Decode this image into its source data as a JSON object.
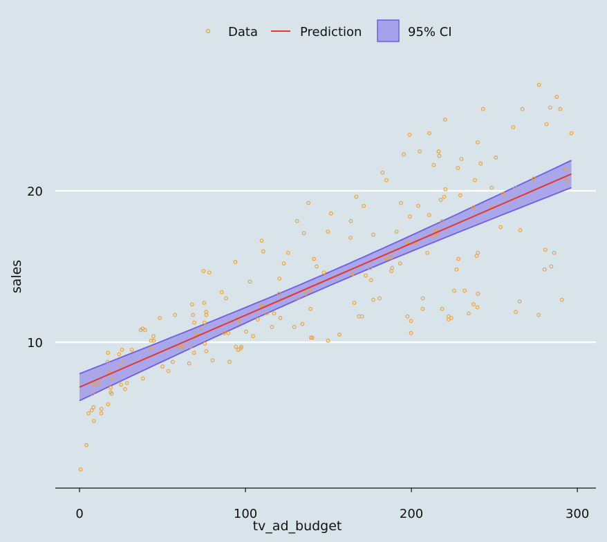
{
  "chart_data": {
    "type": "scatter",
    "title": "",
    "xlabel": "tv_ad_budget",
    "ylabel": "sales",
    "xlim": [
      -14.6,
      311.2
    ],
    "ylim": [
      0.365,
      32.6
    ],
    "xticks": [
      0,
      100,
      200,
      300
    ],
    "yticks": [
      10,
      20
    ],
    "grid": "horizontal",
    "legend": {
      "placement": "top-center",
      "entries": [
        "Data",
        "Prediction",
        "95% CI"
      ]
    },
    "colors": {
      "background": "#d9e3ea",
      "points": "#f0a030",
      "prediction": "#e8352a",
      "ci_fill": "#a6a2ea",
      "ci_edge": "#6c5ce7",
      "grid": "#ffffff"
    },
    "prediction": {
      "intercept": 7.03,
      "slope": 0.0475,
      "x_range": [
        0,
        296.4
      ]
    },
    "ci": {
      "halfwidth_at_mean": 0.45,
      "halfwidth_at_ends": 0.9,
      "x_mean": 147
    },
    "points": [
      [
        230.1,
        22.1
      ],
      [
        44.5,
        10.4
      ],
      [
        17.2,
        9.3
      ],
      [
        151.5,
        18.5
      ],
      [
        180.8,
        12.9
      ],
      [
        8.7,
        7.2
      ],
      [
        57.5,
        11.8
      ],
      [
        120.2,
        13.2
      ],
      [
        8.6,
        4.8
      ],
      [
        199.8,
        10.6
      ],
      [
        66.1,
        8.6
      ],
      [
        214.7,
        17.4
      ],
      [
        23.8,
        9.2
      ],
      [
        97.5,
        9.7
      ],
      [
        204.1,
        19
      ],
      [
        195.4,
        22.4
      ],
      [
        67.8,
        12.5
      ],
      [
        281.4,
        24.4
      ],
      [
        69.2,
        11.3
      ],
      [
        147.3,
        14.6
      ],
      [
        218.4,
        18
      ],
      [
        237.4,
        12.5
      ],
      [
        13.2,
        5.6
      ],
      [
        228.3,
        15.5
      ],
      [
        62.3,
        9.7
      ],
      [
        262.9,
        12
      ],
      [
        142.9,
        15
      ],
      [
        240.1,
        15.9
      ],
      [
        248.8,
        18.9
      ],
      [
        70.6,
        10.5
      ],
      [
        292.9,
        21.4
      ],
      [
        112.9,
        11.9
      ],
      [
        97.2,
        9.6
      ],
      [
        265.6,
        17.4
      ],
      [
        95.7,
        9.5
      ],
      [
        290.7,
        12.8
      ],
      [
        266.9,
        25.4
      ],
      [
        74.7,
        14.7
      ],
      [
        43.1,
        10.1
      ],
      [
        228,
        21.5
      ],
      [
        202.5,
        16.6
      ],
      [
        177,
        17.1
      ],
      [
        293.6,
        20.7
      ],
      [
        206.9,
        12.9
      ],
      [
        25.1,
        8.5
      ],
      [
        175.1,
        14.9
      ],
      [
        89.7,
        10.6
      ],
      [
        239.9,
        23.2
      ],
      [
        227.2,
        14.8
      ],
      [
        66.9,
        9.7
      ],
      [
        199.8,
        11.4
      ],
      [
        100.4,
        10.7
      ],
      [
        216.4,
        22.6
      ],
      [
        182.6,
        21.2
      ],
      [
        262.7,
        20.2
      ],
      [
        198.9,
        23.7
      ],
      [
        7.3,
        5.5
      ],
      [
        136.2,
        13.2
      ],
      [
        210.8,
        23.8
      ],
      [
        210.7,
        18.4
      ],
      [
        53.5,
        8.1
      ],
      [
        261.3,
        24.2
      ],
      [
        239.3,
        15.7
      ],
      [
        102.7,
        14
      ],
      [
        131.1,
        18
      ],
      [
        69,
        9.3
      ],
      [
        31.5,
        9.5
      ],
      [
        139.3,
        13.4
      ],
      [
        237.4,
        18.9
      ],
      [
        216.8,
        22.3
      ],
      [
        199.1,
        18.3
      ],
      [
        109.8,
        12.4
      ],
      [
        26.8,
        8.8
      ],
      [
        129.4,
        11
      ],
      [
        213.4,
        17
      ],
      [
        16.9,
        8.7
      ],
      [
        27.5,
        6.9
      ],
      [
        120.5,
        14.2
      ],
      [
        5.4,
        5.3
      ],
      [
        116,
        11
      ],
      [
        76.4,
        11.8
      ],
      [
        239.8,
        12.3
      ],
      [
        75.3,
        11.3
      ],
      [
        68.4,
        11.8
      ],
      [
        213.5,
        21.7
      ],
      [
        193.2,
        15.2
      ],
      [
        76.3,
        12
      ],
      [
        110.7,
        16
      ],
      [
        88.3,
        12.9
      ],
      [
        109.8,
        16.7
      ],
      [
        134.3,
        11.2
      ],
      [
        28.6,
        7.3
      ],
      [
        217.7,
        19.4
      ],
      [
        250.9,
        22.2
      ],
      [
        107.4,
        11.5
      ],
      [
        163.3,
        16.9
      ],
      [
        197.6,
        11.7
      ],
      [
        184.9,
        15.5
      ],
      [
        289.7,
        25.4
      ],
      [
        135.2,
        17.2
      ],
      [
        222.4,
        11.7
      ],
      [
        296.4,
        23.8
      ],
      [
        280.2,
        14.8
      ],
      [
        187.9,
        14.7
      ],
      [
        238.2,
        20.7
      ],
      [
        137.9,
        19.2
      ],
      [
        25,
        7.2
      ],
      [
        90.4,
        8.7
      ],
      [
        13.1,
        5.3
      ],
      [
        255.4,
        19.8
      ],
      [
        225.8,
        13.4
      ],
      [
        241.7,
        21.8
      ],
      [
        175.7,
        14.1
      ],
      [
        209.6,
        15.9
      ],
      [
        78.2,
        14.6
      ],
      [
        75.1,
        12.6
      ],
      [
        139.2,
        12.2
      ],
      [
        76.4,
        9.4
      ],
      [
        125.7,
        15.9
      ],
      [
        19.4,
        6.6
      ],
      [
        141.3,
        15.5
      ],
      [
        18.8,
        7
      ],
      [
        224,
        11.6
      ],
      [
        123.1,
        15.2
      ],
      [
        229.5,
        19.7
      ],
      [
        87.2,
        10.6
      ],
      [
        7.8,
        6.6
      ],
      [
        80.2,
        8.8
      ],
      [
        220.3,
        24.7
      ],
      [
        59.6,
        9.7
      ],
      [
        0.7,
        1.6
      ],
      [
        265.2,
        12.7
      ],
      [
        8.4,
        5.7
      ],
      [
        219.8,
        19.6
      ],
      [
        36.9,
        10.8
      ],
      [
        48.3,
        11.6
      ],
      [
        25.6,
        9.5
      ],
      [
        273.7,
        20.8
      ],
      [
        43,
        9.6
      ],
      [
        184.9,
        20.7
      ],
      [
        73.4,
        10.9
      ],
      [
        193.7,
        19.2
      ],
      [
        220.5,
        20.1
      ],
      [
        104.6,
        10.4
      ],
      [
        96.2,
        11.4
      ],
      [
        140.3,
        10.3
      ],
      [
        240.1,
        13.2
      ],
      [
        243.2,
        25.4
      ],
      [
        38,
        10.9
      ],
      [
        44.7,
        10.1
      ],
      [
        280.7,
        16.1
      ],
      [
        121,
        11.6
      ],
      [
        197.6,
        16.6
      ],
      [
        171.3,
        19
      ],
      [
        187.8,
        15.6
      ],
      [
        4.1,
        3.2
      ],
      [
        93.9,
        15.3
      ],
      [
        149.8,
        10.1
      ],
      [
        11.7,
        7.3
      ],
      [
        131.7,
        12.9
      ],
      [
        172.5,
        14.4
      ],
      [
        85.7,
        13.3
      ],
      [
        188.4,
        14.9
      ],
      [
        163.5,
        18
      ],
      [
        117.2,
        11.9
      ],
      [
        234.5,
        11.9
      ],
      [
        17.9,
        8
      ],
      [
        206.8,
        12.2
      ],
      [
        215.4,
        17.1
      ],
      [
        284.3,
        15
      ],
      [
        50,
        8.4
      ],
      [
        164.5,
        14.5
      ],
      [
        19.6,
        7.6
      ],
      [
        168.4,
        11.7
      ],
      [
        222.4,
        11.5
      ],
      [
        276.9,
        27
      ],
      [
        248.4,
        20.2
      ],
      [
        170.2,
        11.7
      ],
      [
        276.7,
        11.8
      ],
      [
        165.6,
        12.6
      ],
      [
        156.6,
        10.5
      ],
      [
        218.5,
        12.2
      ],
      [
        56.2,
        8.7
      ],
      [
        287.6,
        26.2
      ],
      [
        253.8,
        17.6
      ],
      [
        205,
        22.6
      ],
      [
        139.5,
        10.3
      ],
      [
        191.1,
        17.3
      ],
      [
        286,
        15.9
      ],
      [
        18.7,
        6.7
      ],
      [
        39.5,
        10.8
      ],
      [
        75.5,
        9.9
      ],
      [
        17.2,
        5.9
      ],
      [
        166.8,
        19.6
      ],
      [
        149.7,
        17.3
      ],
      [
        38.2,
        7.6
      ],
      [
        94.2,
        9.7
      ],
      [
        177,
        12.8
      ],
      [
        283.6,
        25.5
      ],
      [
        232.1,
        13.4
      ]
    ]
  }
}
